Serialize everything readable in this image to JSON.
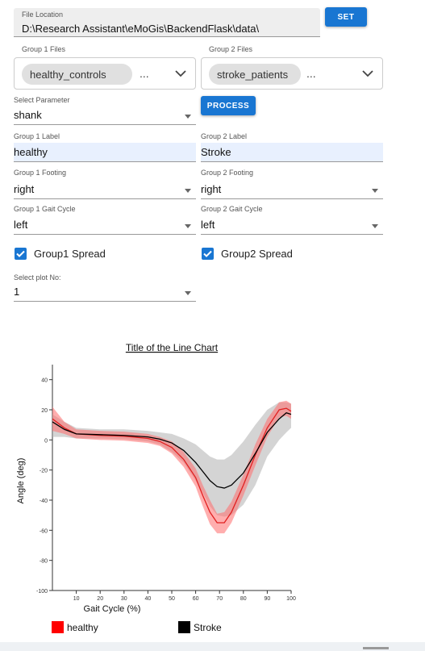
{
  "file_location": {
    "label": "File Location",
    "value": "D:\\Research Assistant\\eMoGis\\BackendFlask\\data\\"
  },
  "buttons": {
    "set": "SET",
    "process": "PROCESS"
  },
  "group1_files": {
    "label": "Group 1 Files",
    "chip": "healthy_controls",
    "more": "..."
  },
  "group2_files": {
    "label": "Group 2 Files",
    "chip": "stroke_patients",
    "more": "..."
  },
  "parameter": {
    "label": "Select Parameter",
    "value": "shank"
  },
  "group1_label": {
    "label": "Group 1 Label",
    "value": "healthy"
  },
  "group2_label": {
    "label": "Group 2 Label",
    "value": "Stroke"
  },
  "group1_footing": {
    "label": "Group 1 Footing",
    "value": "right"
  },
  "group2_footing": {
    "label": "Group 2 Footing",
    "value": "right"
  },
  "group1_gait": {
    "label": "Group 1 Gait Cycle",
    "value": "left"
  },
  "group2_gait": {
    "label": "Group 2 Gait Cycle",
    "value": "left"
  },
  "spread": {
    "group1": "Group1 Spread",
    "group2": "Group2 Spread"
  },
  "plot_no": {
    "label": "Select plot No:",
    "value": "1"
  },
  "colors": {
    "accent": "#1976d2",
    "healthy": "#ff0000",
    "stroke": "#000000"
  },
  "chart_data": {
    "type": "line",
    "title": "Title of the Line Chart",
    "xlabel": "Gait Cycle (%)",
    "ylabel": "Angle (deg)",
    "xlim": [
      0,
      100
    ],
    "ylim": [
      -100,
      50
    ],
    "x_ticks": [
      10,
      20,
      30,
      40,
      50,
      60,
      70,
      80,
      90,
      100
    ],
    "y_ticks": [
      40,
      20,
      0,
      -20,
      -40,
      -60,
      -80,
      -100
    ],
    "x": [
      0,
      5,
      10,
      20,
      30,
      40,
      45,
      50,
      55,
      60,
      63,
      66,
      69,
      72,
      75,
      80,
      85,
      90,
      95,
      98,
      100
    ],
    "series": [
      {
        "name": "healthy",
        "color": "#ff0000",
        "values": [
          14,
          8,
          4,
          3,
          2.5,
          1,
          -1,
          -5,
          -13,
          -25,
          -37,
          -48,
          -55,
          -55,
          -48,
          -30,
          -10,
          8,
          20,
          21,
          19
        ],
        "spread_upper": [
          22,
          12,
          7,
          6,
          5.5,
          4,
          2,
          -1,
          -8,
          -19,
          -30,
          -40,
          -49,
          -48,
          -41,
          -23,
          -3,
          14,
          25,
          26,
          24
        ],
        "spread_lower": [
          6,
          4,
          1,
          0,
          -0.5,
          -2,
          -4,
          -9,
          -18,
          -31,
          -44,
          -56,
          -62,
          -62,
          -55,
          -37,
          -17,
          2,
          15,
          16,
          14
        ]
      },
      {
        "name": "Stroke",
        "color": "#000000",
        "values": [
          12,
          7,
          4,
          3.5,
          3,
          2,
          0.5,
          -2,
          -7,
          -15,
          -21,
          -27,
          -31,
          -32,
          -30,
          -22,
          -9,
          5,
          14,
          18,
          17
        ],
        "spread_upper": [
          17,
          12,
          8,
          7,
          7,
          6,
          5,
          4,
          1,
          -3,
          -7,
          -11,
          -13,
          -13,
          -10,
          -1,
          10,
          20,
          25,
          25,
          24
        ],
        "spread_lower": [
          2,
          2,
          1,
          1,
          0.5,
          -1,
          -3,
          -8,
          -15,
          -27,
          -35,
          -44,
          -50,
          -51,
          -50,
          -43,
          -30,
          -11,
          0,
          5,
          8
        ]
      }
    ],
    "legend": {
      "placement": "bottom",
      "entries": [
        "healthy",
        "Stroke"
      ]
    }
  }
}
